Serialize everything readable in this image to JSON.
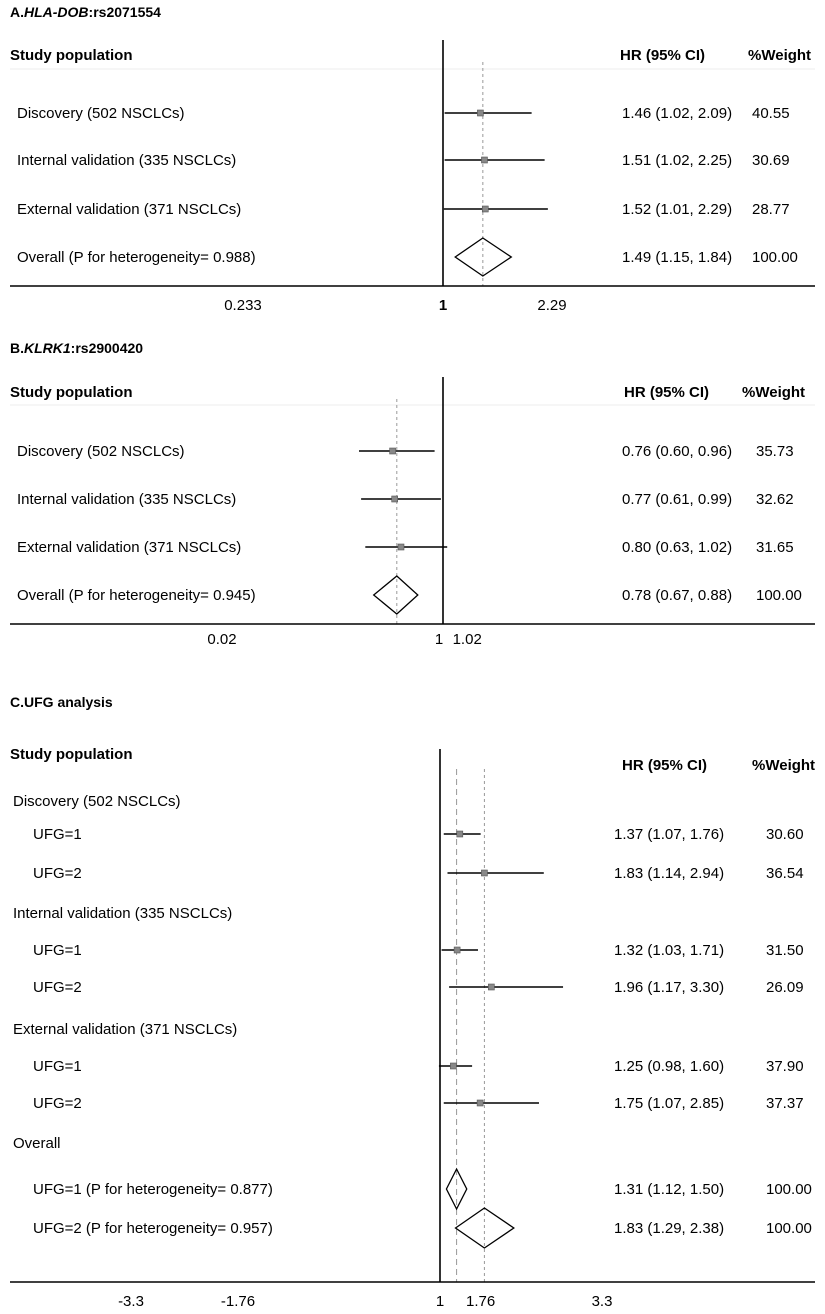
{
  "chart_data": [
    {
      "type": "forest",
      "panel_label": "A.",
      "title_italic": "HLA-DOB",
      "title_rest": ":rs2071554",
      "column_headers": {
        "study": "Study population",
        "hr": "HR (95% CI)",
        "weight": "%Weight"
      },
      "null_value": 1,
      "rows": [
        {
          "label": "Discovery (502 NSCLCs)",
          "hr": 1.46,
          "lo": 1.02,
          "hi": 2.09,
          "hr_text": "1.46 (1.02, 2.09)",
          "weight": "40.55"
        },
        {
          "label": "Internal validation (335 NSCLCs)",
          "hr": 1.51,
          "lo": 1.02,
          "hi": 2.25,
          "hr_text": "1.51 (1.02, 2.25)",
          "weight": "30.69"
        },
        {
          "label": "External validation (371 NSCLCs)",
          "hr": 1.52,
          "lo": 1.01,
          "hi": 2.29,
          "hr_text": "1.52 (1.01, 2.29)",
          "weight": "28.77"
        },
        {
          "label": "Overall  (P for heterogeneity= 0.988)",
          "hr": 1.49,
          "lo": 1.15,
          "hi": 1.84,
          "hr_text": "1.49 (1.15, 1.84)",
          "weight": "100.00",
          "overall": true
        }
      ],
      "ticks": [
        {
          "value": 0.233,
          "label": "0.233"
        },
        {
          "value": 1,
          "label": "1",
          "bold": true
        },
        {
          "value": 2.29,
          "label": "2.29"
        }
      ]
    },
    {
      "type": "forest",
      "panel_label": "B.",
      "title_italic": "KLRK1",
      "title_rest": ":rs2900420",
      "column_headers": {
        "study": "Study population",
        "hr": "HR (95% CI)",
        "weight": "%Weight"
      },
      "null_value": 1,
      "rows": [
        {
          "label": "Discovery (502 NSCLCs)",
          "hr": 0.76,
          "lo": 0.6,
          "hi": 0.96,
          "hr_text": "0.76 (0.60, 0.96)",
          "weight": "35.73"
        },
        {
          "label": "Internal validation (335 NSCLCs)",
          "hr": 0.77,
          "lo": 0.61,
          "hi": 0.99,
          "hr_text": "0.77 (0.61, 0.99)",
          "weight": "32.62"
        },
        {
          "label": "External validation (371 NSCLCs)",
          "hr": 0.8,
          "lo": 0.63,
          "hi": 1.02,
          "hr_text": "0.80 (0.63, 1.02)",
          "weight": "31.65"
        },
        {
          "label": "Overall  (P for heterogeneity= 0.945)",
          "hr": 0.78,
          "lo": 0.67,
          "hi": 0.88,
          "hr_text": "0.78 (0.67, 0.88)",
          "weight": "100.00",
          "overall": true
        }
      ],
      "ticks": [
        {
          "value": 0.02,
          "label": "0.02"
        },
        {
          "value": 1,
          "label": "1"
        },
        {
          "value": 1.02,
          "label": "1.02"
        }
      ]
    },
    {
      "type": "forest",
      "panel_label": "C.",
      "title_italic": "",
      "title_rest": "UFG analysis",
      "column_headers": {
        "study": "Study population",
        "hr": "HR (95% CI)",
        "weight": "%Weight"
      },
      "null_value": 1,
      "rows": [
        {
          "label": "Discovery (502 NSCLCs)",
          "group": true
        },
        {
          "label": "UFG=1",
          "hr": 1.37,
          "lo": 1.07,
          "hi": 1.76,
          "hr_text": "1.37 (1.07, 1.76)",
          "weight": "30.60"
        },
        {
          "label": "UFG=2",
          "hr": 1.83,
          "lo": 1.14,
          "hi": 2.94,
          "hr_text": "1.83 (1.14, 2.94)",
          "weight": "36.54"
        },
        {
          "label": "Internal validation (335 NSCLCs)",
          "group": true
        },
        {
          "label": "UFG=1",
          "hr": 1.32,
          "lo": 1.03,
          "hi": 1.71,
          "hr_text": "1.32 (1.03, 1.71)",
          "weight": "31.50"
        },
        {
          "label": "UFG=2",
          "hr": 1.96,
          "lo": 1.17,
          "hi": 3.3,
          "hr_text": "1.96 (1.17, 3.30)",
          "weight": "26.09"
        },
        {
          "label": "External validation (371 NSCLCs)",
          "group": true
        },
        {
          "label": "UFG=1",
          "hr": 1.25,
          "lo": 0.98,
          "hi": 1.6,
          "hr_text": "1.25 (0.98, 1.60)",
          "weight": "37.90"
        },
        {
          "label": "UFG=2",
          "hr": 1.75,
          "lo": 1.07,
          "hi": 2.85,
          "hr_text": "1.75 (1.07, 2.85)",
          "weight": "37.37"
        },
        {
          "label": "Overall",
          "group": true
        },
        {
          "label": "UFG=1 (P for heterogeneity= 0.877)",
          "hr": 1.31,
          "lo": 1.12,
          "hi": 1.5,
          "hr_text": "1.31 (1.12, 1.50)",
          "weight": "100.00",
          "overall": true
        },
        {
          "label": "UFG=2 (P for heterogeneity= 0.957)",
          "hr": 1.83,
          "lo": 1.29,
          "hi": 2.38,
          "hr_text": "1.83 (1.29, 2.38)",
          "weight": "100.00",
          "overall": true
        }
      ],
      "ticks": [
        {
          "value": -3.3,
          "label": "-3.3"
        },
        {
          "value": -1.76,
          "label": "-1.76"
        },
        {
          "value": 1,
          "label": "1"
        },
        {
          "value": 1.76,
          "label": "1.76"
        },
        {
          "value": 3.3,
          "label": "3.3"
        }
      ]
    }
  ]
}
